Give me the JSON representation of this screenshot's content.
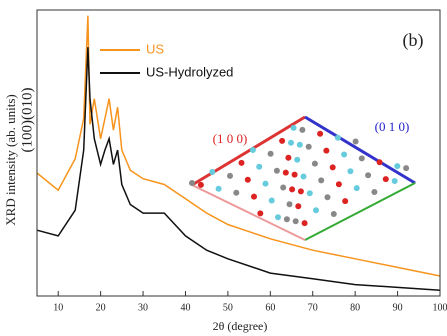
{
  "chart_data": {
    "type": "line",
    "title": "(b)",
    "x_label": "2θ (degree)",
    "y_label": "XRD intensity (ab. units)",
    "annotations": {
      "peaks": "(100)(010)",
      "inset_a": "(1 0 0)",
      "inset_b": "(0 1 0)"
    },
    "xlim": [
      5,
      100
    ],
    "ylim": [
      0,
      100
    ],
    "xticks": [
      10,
      20,
      30,
      40,
      50,
      60,
      70,
      80,
      90,
      100
    ],
    "x": [
      5,
      10,
      14,
      16,
      17,
      17.5,
      18.5,
      20,
      21,
      22,
      23,
      24,
      25,
      27,
      30,
      35,
      40,
      45,
      50,
      60,
      70,
      80,
      90,
      100
    ],
    "series": [
      {
        "name": "US",
        "color": "#f7941d",
        "values": [
          43,
          37,
          48,
          62,
          98,
          60,
          69,
          55,
          62,
          69,
          58,
          66,
          51,
          44,
          41,
          39,
          34,
          29,
          25,
          20,
          16,
          13,
          10,
          7
        ]
      },
      {
        "name": "US-Hydrolyzed",
        "color": "#111111",
        "values": [
          23,
          21,
          30,
          51,
          87,
          69,
          55,
          46,
          51,
          55,
          46,
          51,
          39,
          32,
          29,
          29,
          21,
          16,
          13,
          8,
          6,
          4,
          3,
          2
        ]
      }
    ]
  }
}
